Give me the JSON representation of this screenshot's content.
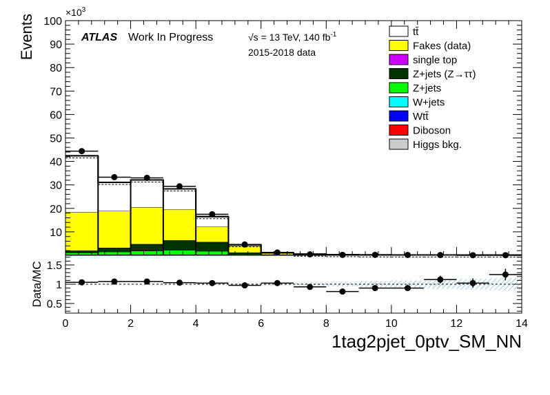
{
  "header": {
    "experiment": "ATLAS",
    "status": "Work In Progress",
    "energy_lumi": "√s = 13 TeV, 140 fb",
    "lumi_exp": "-1",
    "dataset": "2015-2018 data"
  },
  "colors": {
    "ttbar": "#ffffff",
    "fakes": "#ffff00",
    "single_top": "#cc00ff",
    "zjets_tautau": "#003300",
    "zjets": "#00ff00",
    "wjets": "#00ffff",
    "wtt": "#0000ff",
    "diboson": "#ff0000",
    "higgs": "#cccccc",
    "unc_hatch": "#5fa8d3"
  },
  "chart_data": [
    {
      "type": "bar",
      "stacked": true,
      "ylabel": "Events",
      "y_multiplier": "×10",
      "y_multiplier_exp": "3",
      "ylim": [
        0,
        100
      ],
      "y_ticks": [
        "10",
        "20",
        "30",
        "40",
        "50",
        "60",
        "70",
        "80",
        "90",
        "100"
      ],
      "bin_edges": [
        0,
        1,
        2,
        3,
        4,
        5,
        6,
        7,
        8,
        9,
        10,
        11,
        12,
        13,
        14
      ],
      "series": [
        {
          "name": "Higgs bkg.",
          "color": "#cccccc",
          "values": [
            0,
            0,
            0,
            0,
            0,
            0,
            0,
            0,
            0,
            0,
            0,
            0,
            0,
            0
          ]
        },
        {
          "name": "Diboson",
          "color": "#ff0000",
          "values": [
            0.1,
            0.1,
            0.1,
            0.1,
            0.1,
            0,
            0,
            0,
            0,
            0,
            0,
            0,
            0,
            0
          ]
        },
        {
          "name": "Wtt̄",
          "color": "#0000ff",
          "values": [
            0.1,
            0.1,
            0.1,
            0.1,
            0.1,
            0,
            0,
            0,
            0,
            0,
            0,
            0,
            0,
            0
          ]
        },
        {
          "name": "W+jets",
          "color": "#00ffff",
          "values": [
            0.1,
            0.1,
            0.1,
            0.1,
            0.1,
            0.05,
            0,
            0,
            0,
            0,
            0,
            0,
            0,
            0
          ]
        },
        {
          "name": "Z+jets",
          "color": "#00ff00",
          "values": [
            0.8,
            1.2,
            1.6,
            1.9,
            1.5,
            0.3,
            0.1,
            0,
            0,
            0,
            0,
            0,
            0,
            0
          ]
        },
        {
          "name": "Z+jets (Z→ττ)",
          "color": "#003300",
          "values": [
            0.8,
            1.6,
            2.8,
            4.1,
            3.8,
            0.8,
            0.2,
            0.1,
            0,
            0,
            0,
            0,
            0,
            0
          ]
        },
        {
          "name": "single top",
          "color": "#cc00ff",
          "values": [
            0.1,
            0.1,
            0.1,
            0.1,
            0.1,
            0.05,
            0,
            0,
            0,
            0,
            0,
            0,
            0,
            0
          ]
        },
        {
          "name": "Fakes (data)",
          "color": "#ffff00",
          "values": [
            16.4,
            15.7,
            15.7,
            13.2,
            6.5,
            2.8,
            0.6,
            0.3,
            0.2,
            0.1,
            0.1,
            0.1,
            0.05,
            0.05
          ]
        },
        {
          "name": "tt̄",
          "color": "#ffffff",
          "values": [
            24.0,
            12.2,
            11.6,
            8.7,
            4.3,
            0.5,
            0.2,
            0.1,
            0.1,
            0.1,
            0.05,
            0.05,
            0.05,
            0.05
          ]
        }
      ],
      "data": {
        "x": [
          0.5,
          1.5,
          2.5,
          3.5,
          4.5,
          5.5,
          6.5,
          7.5,
          8.5,
          9.5,
          10.5,
          11.5,
          12.5,
          13.5
        ],
        "y": [
          44.4,
          33.3,
          33.0,
          29.4,
          17.5,
          4.6,
          1.2,
          0.4,
          0.2,
          0.2,
          0.15,
          0.1,
          0.05,
          0.05
        ]
      },
      "legend_position": "top-right"
    },
    {
      "type": "scatter",
      "ylabel": "Data/MC",
      "xlabel": "1tag2pjet_0ptv_SM_NN",
      "xlim": [
        0,
        14
      ],
      "ylim": [
        0.25,
        1.75
      ],
      "x_ticks": [
        "0",
        "2",
        "4",
        "6",
        "8",
        "10",
        "12",
        "14"
      ],
      "y_ticks": [
        "0.5",
        "1",
        "1.5"
      ],
      "reference_line": 1,
      "x": [
        0.5,
        1.5,
        2.5,
        3.5,
        4.5,
        5.5,
        6.5,
        7.5,
        8.5,
        9.5,
        10.5,
        11.5,
        12.5,
        13.5
      ],
      "ratio": [
        1.05,
        1.07,
        1.07,
        1.04,
        1.03,
        0.97,
        1.03,
        0.93,
        0.81,
        0.9,
        0.9,
        1.12,
        1.03,
        1.25
      ],
      "err": [
        0.01,
        0.01,
        0.01,
        0.01,
        0.02,
        0.03,
        0.03,
        0.05,
        0.06,
        0.06,
        0.08,
        0.1,
        0.12,
        0.15
      ],
      "unc_band": [
        0.01,
        0.01,
        0.01,
        0.01,
        0.02,
        0.02,
        0.03,
        0.04,
        0.06,
        0.08,
        0.1,
        0.12,
        0.14,
        0.16
      ]
    }
  ]
}
